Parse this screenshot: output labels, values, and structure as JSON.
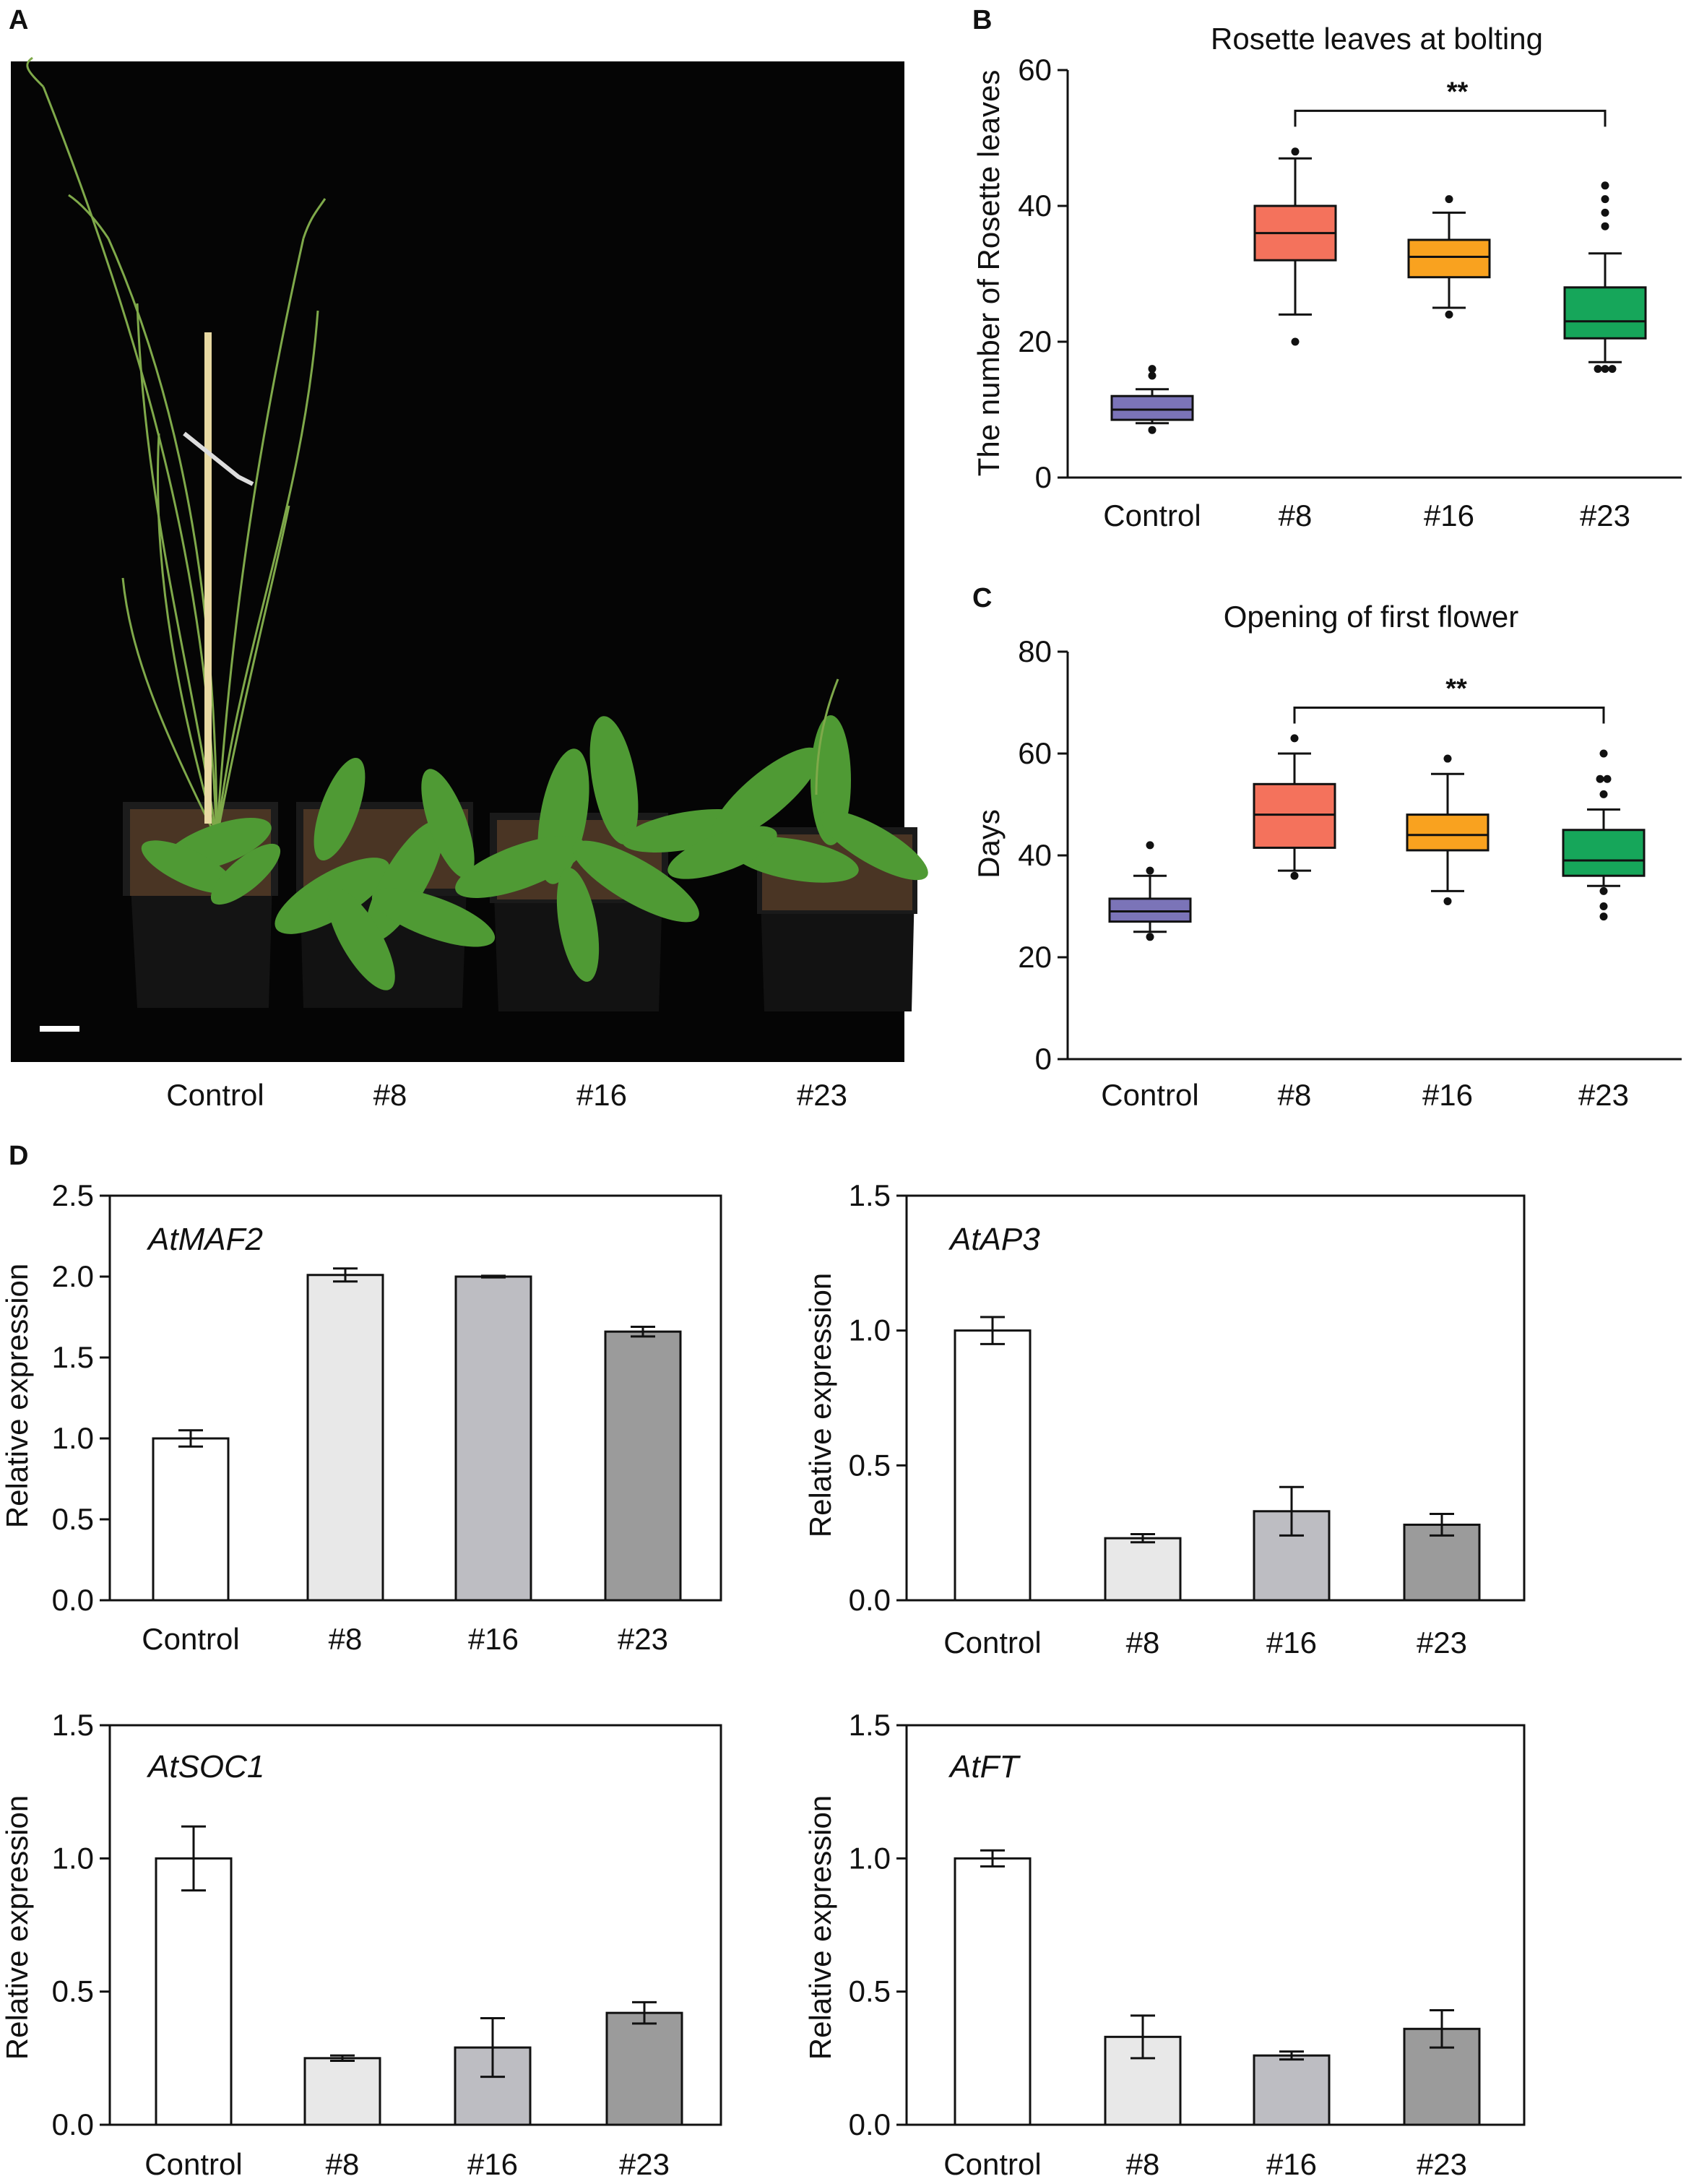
{
  "panel_labels": {
    "a": "A",
    "b": "B",
    "c": "C",
    "d": "D"
  },
  "photo": {
    "labels": [
      "Control",
      "#8",
      "#16",
      "#23"
    ]
  },
  "chart_data": [
    {
      "id": "B",
      "type": "box",
      "title": "Rosette leaves at bolting",
      "ylabel": "The number of Rosette leaves",
      "xlabel": "",
      "ylim": [
        0,
        60
      ],
      "yticks": [
        0,
        20,
        40,
        60
      ],
      "categories": [
        "Control",
        "#8",
        "#16",
        "#23"
      ],
      "colors": [
        "#7b74b8",
        "#f4725c",
        "#f9a21f",
        "#16a65a"
      ],
      "boxes": [
        {
          "category": "Control",
          "whisker_low": 8,
          "q1": 8.5,
          "median": 10,
          "q3": 12,
          "whisker_high": 13,
          "outliers": [
            7,
            15,
            16
          ]
        },
        {
          "category": "#8",
          "whisker_low": 24,
          "q1": 32,
          "median": 36,
          "q3": 40,
          "whisker_high": 47,
          "outliers": [
            20,
            48
          ]
        },
        {
          "category": "#16",
          "whisker_low": 25,
          "q1": 29.5,
          "median": 32.5,
          "q3": 35,
          "whisker_high": 39,
          "outliers": [
            24,
            41
          ]
        },
        {
          "category": "#23",
          "whisker_low": 17,
          "q1": 20.5,
          "median": 23,
          "q3": 28,
          "whisker_high": 33,
          "outliers": [
            16,
            16,
            16,
            37,
            39,
            41,
            43
          ]
        }
      ],
      "significance": {
        "from": "#8",
        "to": "#23",
        "label": "**",
        "y": 54
      }
    },
    {
      "id": "C",
      "type": "box",
      "title": "Opening of first flower",
      "ylabel": "Days",
      "xlabel": "",
      "ylim": [
        0,
        80
      ],
      "yticks": [
        0,
        20,
        40,
        60,
        80
      ],
      "categories": [
        "Control",
        "#8",
        "#16",
        "#23"
      ],
      "colors": [
        "#7b74b8",
        "#f4725c",
        "#f9a21f",
        "#16a65a"
      ],
      "boxes": [
        {
          "category": "Control",
          "whisker_low": 25,
          "q1": 27,
          "median": 29,
          "q3": 31.5,
          "whisker_high": 36,
          "outliers": [
            24,
            37,
            42
          ]
        },
        {
          "category": "#8",
          "whisker_low": 37,
          "q1": 41.5,
          "median": 48,
          "q3": 54,
          "whisker_high": 60,
          "outliers": [
            36,
            63
          ]
        },
        {
          "category": "#16",
          "whisker_low": 33,
          "q1": 41,
          "median": 44,
          "q3": 48,
          "whisker_high": 56,
          "outliers": [
            31,
            59
          ]
        },
        {
          "category": "#23",
          "whisker_low": 34,
          "q1": 36,
          "median": 39,
          "q3": 45,
          "whisker_high": 49,
          "outliers": [
            28,
            30,
            33,
            52,
            55,
            55,
            60
          ]
        }
      ],
      "significance": {
        "from": "#8",
        "to": "#23",
        "label": "**",
        "y": 69
      }
    },
    {
      "id": "D-AtMAF2",
      "type": "bar",
      "gene": "AtMAF2",
      "ylabel": "Relative expression",
      "xlabel": "",
      "ylim": [
        0,
        2.5
      ],
      "yticks": [
        "0.0",
        "0.5",
        "1.0",
        "1.5",
        "2.0",
        "2.5"
      ],
      "categories": [
        "Control",
        "#8",
        "#16",
        "#23"
      ],
      "values": [
        1.0,
        2.01,
        2.0,
        1.66
      ],
      "errors": [
        0.05,
        0.04,
        0.005,
        0.03
      ],
      "colors": [
        "#ffffff",
        "#e8e8e8",
        "#bdbdc2",
        "#9b9b9b"
      ]
    },
    {
      "id": "D-AtAP3",
      "type": "bar",
      "gene": "AtAP3",
      "ylabel": "Relative expression",
      "xlabel": "",
      "ylim": [
        0,
        1.5
      ],
      "yticks": [
        "0.0",
        "0.5",
        "1.0",
        "1.5"
      ],
      "categories": [
        "Control",
        "#8",
        "#16",
        "#23"
      ],
      "values": [
        1.0,
        0.23,
        0.33,
        0.28
      ],
      "errors": [
        0.05,
        0.015,
        0.09,
        0.04
      ],
      "colors": [
        "#ffffff",
        "#e8e8e8",
        "#bdbdc2",
        "#9b9b9b"
      ]
    },
    {
      "id": "D-AtSOC1",
      "type": "bar",
      "gene": "AtSOC1",
      "ylabel": "Relative expression",
      "xlabel": "",
      "ylim": [
        0,
        1.5
      ],
      "yticks": [
        "0.0",
        "0.5",
        "1.0",
        "1.5"
      ],
      "categories": [
        "Control",
        "#8",
        "#16",
        "#23"
      ],
      "values": [
        1.0,
        0.25,
        0.29,
        0.42
      ],
      "errors": [
        0.12,
        0.01,
        0.11,
        0.04
      ],
      "colors": [
        "#ffffff",
        "#e8e8e8",
        "#bdbdc2",
        "#9b9b9b"
      ]
    },
    {
      "id": "D-AtFT",
      "type": "bar",
      "gene": "AtFT",
      "ylabel": "Relative expression",
      "xlabel": "",
      "ylim": [
        0,
        1.5
      ],
      "yticks": [
        "0.0",
        "0.5",
        "1.0",
        "1.5"
      ],
      "categories": [
        "Control",
        "#8",
        "#16",
        "#23"
      ],
      "values": [
        1.0,
        0.33,
        0.26,
        0.36
      ],
      "errors": [
        0.03,
        0.08,
        0.015,
        0.07
      ],
      "colors": [
        "#ffffff",
        "#e8e8e8",
        "#bdbdc2",
        "#9b9b9b"
      ]
    }
  ]
}
